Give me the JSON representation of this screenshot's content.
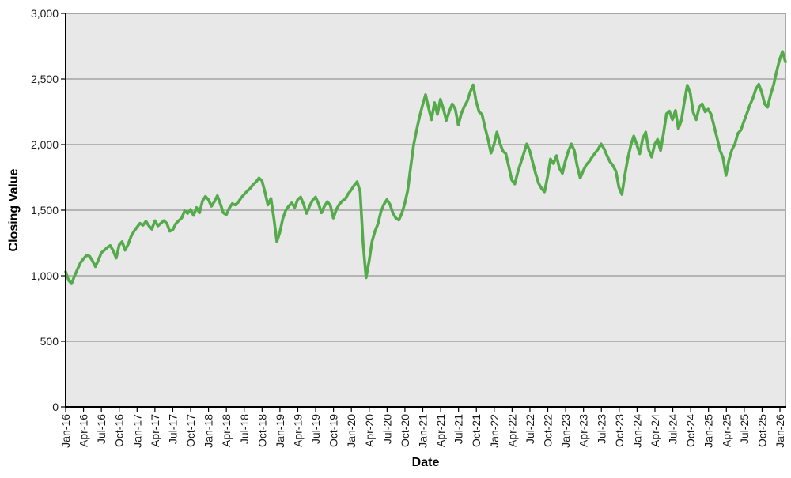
{
  "chart_data": {
    "type": "line",
    "title": "",
    "xlabel": "Date",
    "ylabel": "Closing Value",
    "ylim": [
      0,
      3000
    ],
    "grid": "horizontal-only",
    "legend": "none",
    "y_tick_values": [
      0,
      500,
      1000,
      1500,
      2000,
      2500,
      3000
    ],
    "y_tick_labels": [
      "0",
      "500",
      "1,000",
      "1,500",
      "2,000",
      "2,500",
      "3,000"
    ],
    "x_tick_labels": [
      "Jan-16",
      "Apr-16",
      "Jul-16",
      "Oct-16",
      "Jan-17",
      "Apr-17",
      "Jul-17",
      "Oct-17",
      "Jan-18",
      "Apr-18",
      "Jul-18",
      "Oct-18",
      "Jan-19",
      "Apr-19",
      "Jul-19",
      "Oct-19",
      "Jan-20",
      "Apr-20",
      "Jul-20",
      "Oct-20",
      "Jan-21",
      "Apr-21",
      "Jul-21",
      "Oct-21",
      "Jan-22",
      "Apr-22",
      "Jul-22",
      "Oct-22",
      "Jan-23",
      "Apr-23",
      "Jul-23",
      "Oct-23",
      "Jan-24",
      "Apr-24",
      "Jul-24",
      "Oct-24",
      "Jan-25",
      "Apr-25",
      "Jul-25",
      "Oct-25",
      "Jan-26"
    ],
    "series": [
      {
        "name": "Closing Value",
        "color": "#55ab4b",
        "points_per_month": 2,
        "start_label": "Jan-16",
        "end_label": "Jan-26",
        "values": [
          1030,
          965,
          940,
          1000,
          1050,
          1100,
          1130,
          1155,
          1150,
          1115,
          1070,
          1120,
          1175,
          1195,
          1215,
          1230,
          1190,
          1135,
          1235,
          1260,
          1195,
          1240,
          1300,
          1340,
          1370,
          1400,
          1385,
          1415,
          1380,
          1355,
          1420,
          1380,
          1400,
          1420,
          1400,
          1340,
          1350,
          1395,
          1420,
          1440,
          1495,
          1475,
          1505,
          1460,
          1520,
          1480,
          1570,
          1605,
          1580,
          1530,
          1565,
          1610,
          1550,
          1480,
          1465,
          1515,
          1550,
          1540,
          1560,
          1595,
          1620,
          1645,
          1665,
          1695,
          1715,
          1745,
          1725,
          1640,
          1540,
          1590,
          1440,
          1260,
          1330,
          1435,
          1500,
          1530,
          1555,
          1520,
          1580,
          1600,
          1545,
          1475,
          1530,
          1575,
          1600,
          1550,
          1480,
          1530,
          1565,
          1535,
          1440,
          1505,
          1545,
          1570,
          1585,
          1625,
          1655,
          1690,
          1717,
          1640,
          1250,
          985,
          1110,
          1260,
          1340,
          1395,
          1490,
          1545,
          1580,
          1545,
          1480,
          1440,
          1425,
          1475,
          1550,
          1650,
          1830,
          2000,
          2110,
          2215,
          2300,
          2380,
          2280,
          2190,
          2320,
          2230,
          2345,
          2270,
          2185,
          2255,
          2310,
          2270,
          2150,
          2235,
          2290,
          2330,
          2400,
          2455,
          2330,
          2250,
          2230,
          2130,
          2040,
          1935,
          2000,
          2095,
          2010,
          1950,
          1930,
          1830,
          1730,
          1700,
          1790,
          1860,
          1930,
          2005,
          1955,
          1865,
          1780,
          1705,
          1665,
          1640,
          1755,
          1890,
          1855,
          1915,
          1820,
          1780,
          1875,
          1950,
          2005,
          1955,
          1835,
          1745,
          1800,
          1845,
          1870,
          1905,
          1935,
          1965,
          2005,
          1970,
          1915,
          1870,
          1840,
          1795,
          1675,
          1620,
          1765,
          1895,
          1995,
          2065,
          2000,
          1930,
          2045,
          2095,
          1960,
          1905,
          2000,
          2040,
          1955,
          2085,
          2235,
          2255,
          2190,
          2260,
          2120,
          2185,
          2325,
          2452,
          2390,
          2245,
          2190,
          2285,
          2310,
          2250,
          2270,
          2230,
          2140,
          2050,
          1955,
          1900,
          1765,
          1885,
          1960,
          2005,
          2085,
          2110,
          2175,
          2235,
          2300,
          2350,
          2420,
          2460,
          2400,
          2310,
          2285,
          2380,
          2455,
          2555,
          2645,
          2710,
          2630
        ]
      }
    ],
    "colors": {
      "series_green": "#55ab4b",
      "plot_background": "#e8e8e8",
      "gridline": "#808080",
      "plot_border": "#808080",
      "axis_line": "#000000",
      "page_background": "#ffffff",
      "tick_text": "#1a1a1a"
    }
  }
}
